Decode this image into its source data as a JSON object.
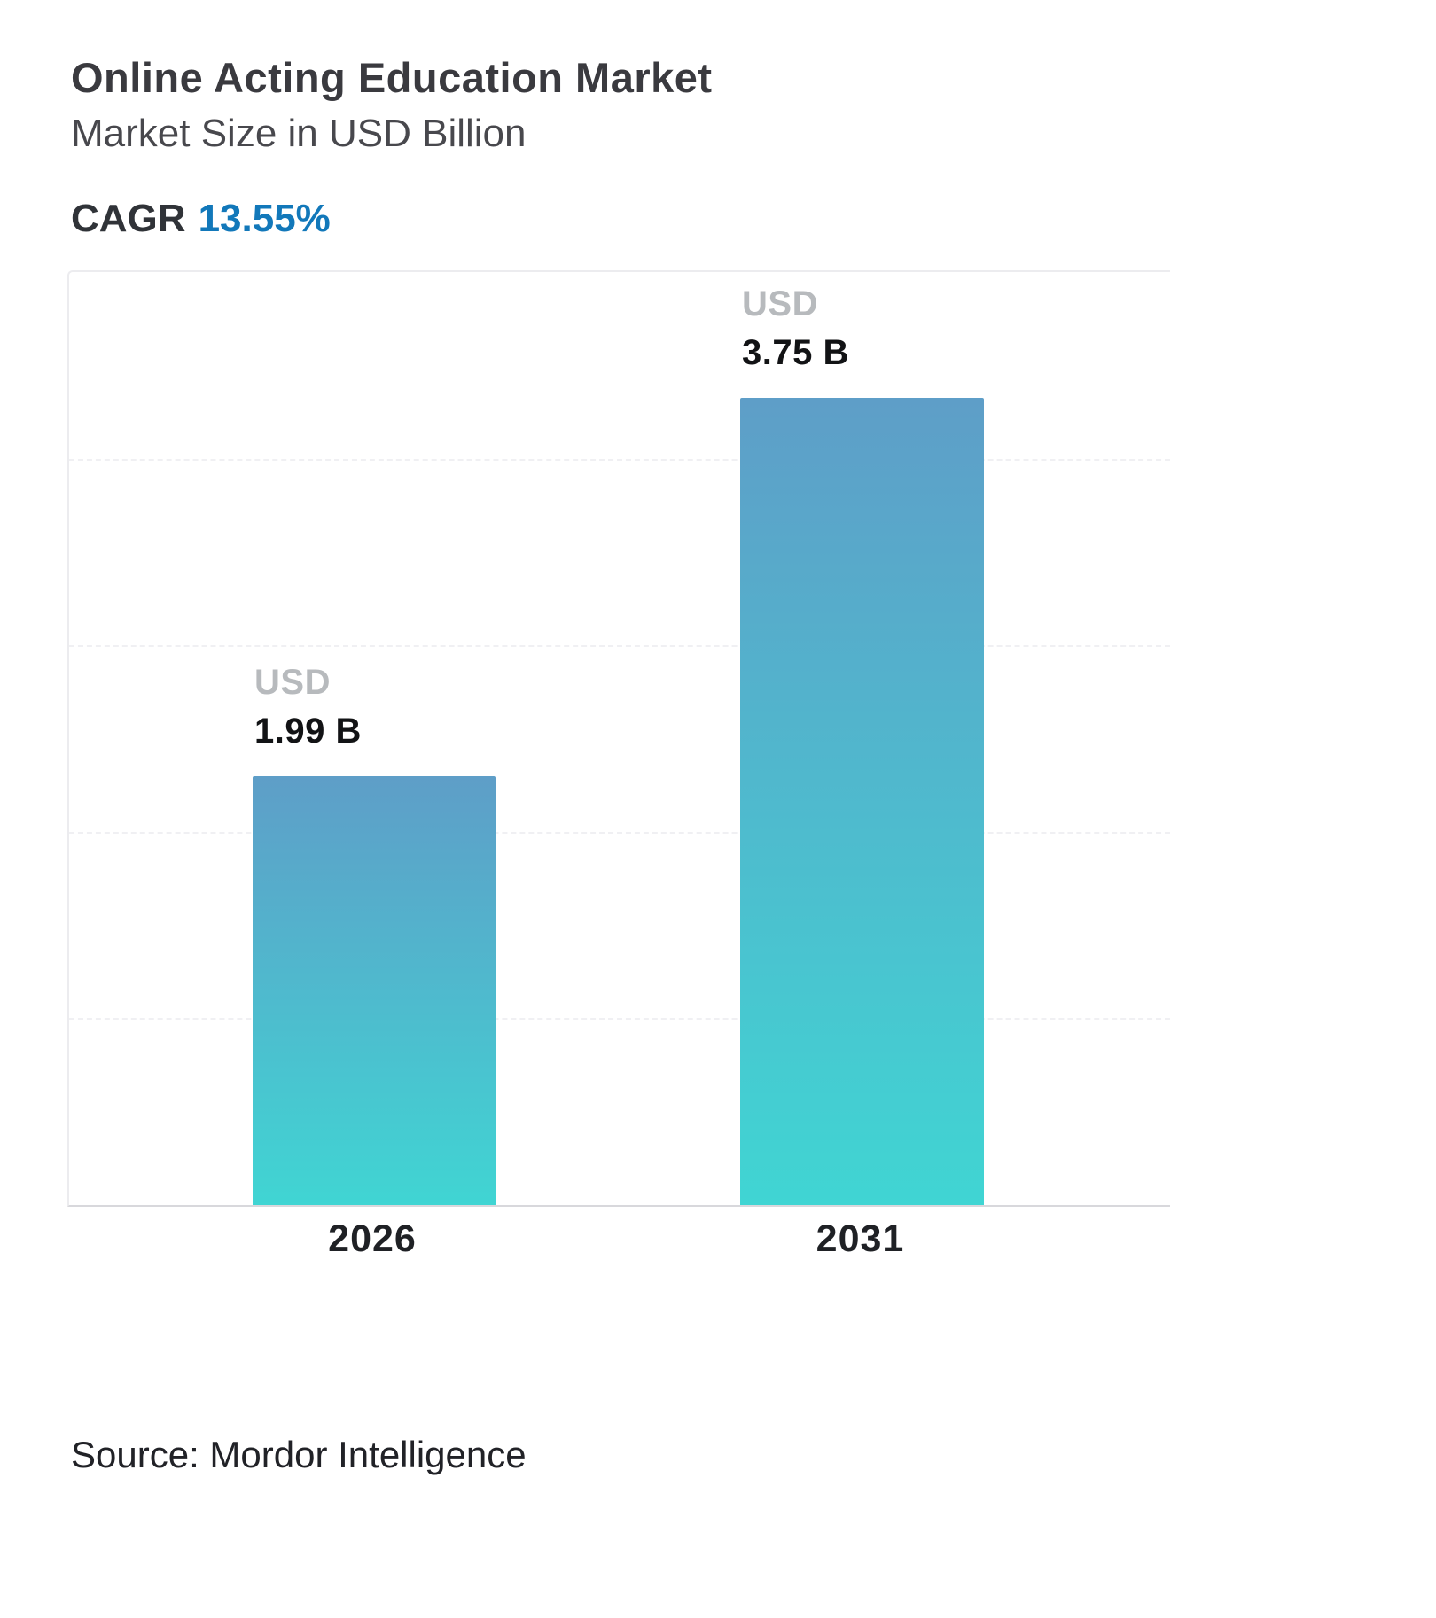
{
  "header": {
    "title": "Online Acting Education Market",
    "subtitle": "Market Size in USD Billion",
    "cagr_label": "CAGR",
    "cagr_value": "13.55%"
  },
  "footer": {
    "source": "Source: Mordor Intelligence"
  },
  "chart_data": {
    "type": "bar",
    "title": "Online Acting Education Market",
    "subtitle": "Market Size in USD Billion",
    "cagr_percent": "13.55%",
    "categories": [
      "2026",
      "2031"
    ],
    "values": [
      1.99,
      3.75
    ],
    "value_labels": [
      {
        "prefix": "USD",
        "value": "1.99 B"
      },
      {
        "prefix": "USD",
        "value": "3.75 B"
      }
    ],
    "xlabel": "",
    "ylabel": "",
    "ylim": [
      0,
      4.35
    ],
    "grid": "dashed-horizontal",
    "legend": "none",
    "bar_gradient_top": "#5e9ec8",
    "bar_gradient_bottom": "#40d5d3",
    "accent_blue": "#1278ba",
    "source": "Source: Mordor Intelligence"
  }
}
